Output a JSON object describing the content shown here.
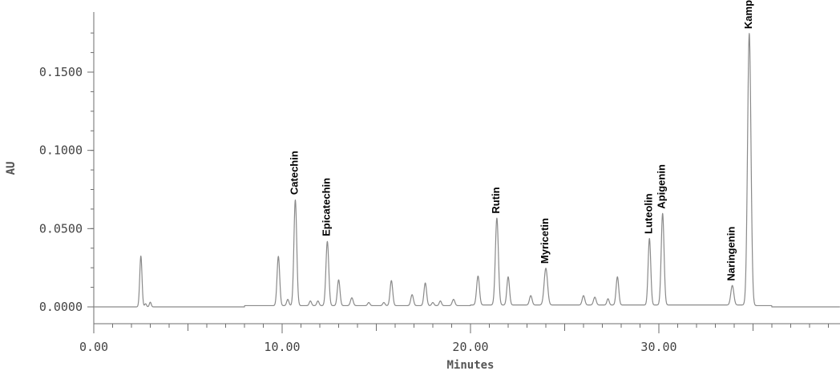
{
  "chart_data": {
    "type": "line",
    "title": "",
    "xlabel": "Minutes",
    "ylabel": "AU",
    "xlim": [
      0,
      40
    ],
    "ylim": [
      -0.012,
      0.188
    ],
    "grid": false,
    "x_ticks": [
      0,
      10,
      20,
      30
    ],
    "x_tick_labels": [
      "0.00",
      "10.00",
      "20.00",
      "30.00"
    ],
    "y_ticks": [
      0,
      0.05,
      0.1,
      0.15
    ],
    "y_tick_labels": [
      "0.0000",
      "0.0500",
      "0.1000",
      "0.1500"
    ],
    "series": [
      {
        "peaks": [
          {
            "rt": 2.5,
            "height": 0.0325,
            "width": 0.06
          },
          {
            "rt": 2.75,
            "height": 0.002,
            "width": 0.05
          },
          {
            "rt": 3.0,
            "height": 0.003,
            "width": 0.05
          },
          {
            "rt": 9.8,
            "height": 0.0315,
            "width": 0.07
          },
          {
            "rt": 10.3,
            "height": 0.004,
            "width": 0.06
          },
          {
            "rt": 10.7,
            "height": 0.0675,
            "width": 0.075
          },
          {
            "rt": 11.5,
            "height": 0.003,
            "width": 0.06
          },
          {
            "rt": 11.9,
            "height": 0.003,
            "width": 0.06
          },
          {
            "rt": 12.4,
            "height": 0.041,
            "width": 0.075
          },
          {
            "rt": 13.0,
            "height": 0.0165,
            "width": 0.07
          },
          {
            "rt": 13.7,
            "height": 0.005,
            "width": 0.07
          },
          {
            "rt": 14.6,
            "height": 0.002,
            "width": 0.06
          },
          {
            "rt": 15.4,
            "height": 0.002,
            "width": 0.06
          },
          {
            "rt": 15.8,
            "height": 0.016,
            "width": 0.07
          },
          {
            "rt": 16.9,
            "height": 0.007,
            "width": 0.07
          },
          {
            "rt": 17.6,
            "height": 0.0145,
            "width": 0.07
          },
          {
            "rt": 18.0,
            "height": 0.002,
            "width": 0.06
          },
          {
            "rt": 18.4,
            "height": 0.003,
            "width": 0.06
          },
          {
            "rt": 19.1,
            "height": 0.004,
            "width": 0.07
          },
          {
            "rt": 20.4,
            "height": 0.0185,
            "width": 0.075
          },
          {
            "rt": 21.4,
            "height": 0.0555,
            "width": 0.08
          },
          {
            "rt": 22.0,
            "height": 0.018,
            "width": 0.07
          },
          {
            "rt": 23.2,
            "height": 0.006,
            "width": 0.07
          },
          {
            "rt": 24.0,
            "height": 0.0235,
            "width": 0.09
          },
          {
            "rt": 26.0,
            "height": 0.006,
            "width": 0.07
          },
          {
            "rt": 26.6,
            "height": 0.005,
            "width": 0.07
          },
          {
            "rt": 27.3,
            "height": 0.004,
            "width": 0.06
          },
          {
            "rt": 27.8,
            "height": 0.018,
            "width": 0.07
          },
          {
            "rt": 29.5,
            "height": 0.0425,
            "width": 0.07
          },
          {
            "rt": 30.2,
            "height": 0.0585,
            "width": 0.075
          },
          {
            "rt": 33.9,
            "height": 0.0125,
            "width": 0.08
          },
          {
            "rt": 34.8,
            "height": 0.1735,
            "width": 0.09
          }
        ]
      }
    ],
    "annotations": [
      {
        "text": "Catechin",
        "x": 10.7,
        "y": 0.0675
      },
      {
        "text": "Epicatechin",
        "x": 12.4,
        "y": 0.041
      },
      {
        "text": "Rutin",
        "x": 21.4,
        "y": 0.0555
      },
      {
        "text": "Myricetin",
        "x": 24.0,
        "y": 0.0235
      },
      {
        "text": "Luteolin",
        "x": 29.5,
        "y": 0.0425
      },
      {
        "text": "Apigenin",
        "x": 30.2,
        "y": 0.0585
      },
      {
        "text": "Naringenin",
        "x": 33.9,
        "y": 0.0125
      },
      {
        "text": "Kampferol",
        "x": 34.8,
        "y": 0.1735
      }
    ],
    "colors": {
      "trace": "#8a8a8a",
      "axis": "#6e6e6e",
      "label": "#000000"
    }
  }
}
